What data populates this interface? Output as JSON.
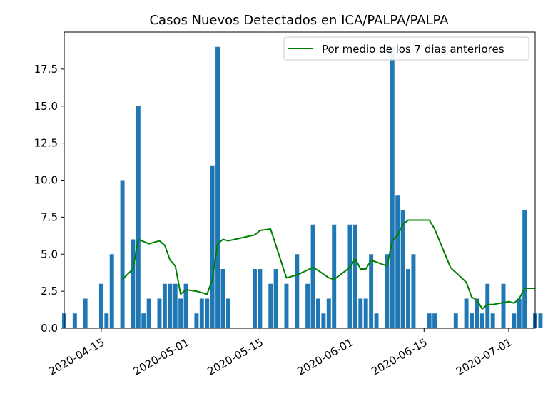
{
  "chart_data": {
    "type": "bar",
    "title": "Casos Nuevos Detectados en ICA/PALPA/PALPA",
    "xlabel": "",
    "ylabel": "",
    "ylim": [
      0,
      20
    ],
    "xlim": [
      "2020-04-08",
      "2020-07-06"
    ],
    "x_ticks": [
      "2020-04-15",
      "2020-05-01",
      "2020-05-15",
      "2020-06-01",
      "2020-06-15",
      "2020-07-01"
    ],
    "y_ticks": [
      "0.0",
      "2.5",
      "5.0",
      "7.5",
      "10.0",
      "12.5",
      "15.0",
      "17.5"
    ],
    "y_tick_values": [
      0,
      2.5,
      5,
      7.5,
      10,
      12.5,
      15,
      17.5
    ],
    "legend": {
      "location": "top-right",
      "entries": [
        "Por medio de los 7 dias anteriores"
      ]
    },
    "colors": {
      "bars": "#1f77b4",
      "line": "#008000"
    },
    "series": [
      {
        "type": "bar",
        "x": [
          "2020-04-08",
          "2020-04-10",
          "2020-04-12",
          "2020-04-15",
          "2020-04-16",
          "2020-04-17",
          "2020-04-19",
          "2020-04-21",
          "2020-04-22",
          "2020-04-23",
          "2020-04-24",
          "2020-04-26",
          "2020-04-27",
          "2020-04-28",
          "2020-04-29",
          "2020-04-30",
          "2020-05-01",
          "2020-05-03",
          "2020-05-04",
          "2020-05-05",
          "2020-05-06",
          "2020-05-07",
          "2020-05-08",
          "2020-05-09",
          "2020-05-14",
          "2020-05-15",
          "2020-05-17",
          "2020-05-18",
          "2020-05-20",
          "2020-05-22",
          "2020-05-24",
          "2020-05-25",
          "2020-05-26",
          "2020-05-27",
          "2020-05-28",
          "2020-05-29",
          "2020-05-30",
          "2020-06-01",
          "2020-06-02",
          "2020-06-03",
          "2020-06-04",
          "2020-06-05",
          "2020-06-06",
          "2020-06-08",
          "2020-06-09",
          "2020-06-10",
          "2020-06-11",
          "2020-06-12",
          "2020-06-13",
          "2020-06-16",
          "2020-06-17",
          "2020-06-21",
          "2020-06-23",
          "2020-06-24",
          "2020-06-25",
          "2020-06-26",
          "2020-06-27",
          "2020-06-28",
          "2020-06-30",
          "2020-07-02",
          "2020-07-03",
          "2020-07-04",
          "2020-07-06",
          "2020-07-07"
        ],
        "values": [
          1,
          1,
          2,
          3,
          1,
          5,
          10,
          6,
          15,
          1,
          2,
          2,
          3,
          3,
          3,
          2,
          3,
          1,
          2,
          2,
          11,
          19,
          4,
          2,
          4,
          4,
          3,
          4,
          3,
          5,
          3,
          7,
          2,
          1,
          2,
          7,
          0,
          7,
          7,
          2,
          2,
          5,
          1,
          5,
          19,
          9,
          8,
          4,
          5,
          1,
          1,
          1,
          2,
          1,
          2,
          1,
          3,
          1,
          3,
          1,
          2,
          8,
          1,
          1
        ]
      },
      {
        "type": "line",
        "name": "Por medio de los 7 dias anteriores",
        "x": [
          "2020-04-19",
          "2020-04-21",
          "2020-04-22",
          "2020-04-24",
          "2020-04-26",
          "2020-04-27",
          "2020-04-28",
          "2020-04-29",
          "2020-04-30",
          "2020-05-01",
          "2020-05-03",
          "2020-05-04",
          "2020-05-05",
          "2020-05-06",
          "2020-05-07",
          "2020-05-08",
          "2020-05-09",
          "2020-05-14",
          "2020-05-15",
          "2020-05-17",
          "2020-05-18",
          "2020-05-20",
          "2020-05-22",
          "2020-05-25",
          "2020-05-26",
          "2020-05-28",
          "2020-05-29",
          "2020-06-01",
          "2020-06-02",
          "2020-06-03",
          "2020-06-04",
          "2020-06-05",
          "2020-06-08",
          "2020-06-09",
          "2020-06-10",
          "2020-06-11",
          "2020-06-12",
          "2020-06-13",
          "2020-06-15",
          "2020-06-16",
          "2020-06-17",
          "2020-06-20",
          "2020-06-23",
          "2020-06-24",
          "2020-06-25",
          "2020-06-26",
          "2020-06-27",
          "2020-06-28",
          "2020-07-01",
          "2020-07-02",
          "2020-07-03",
          "2020-07-04",
          "2020-07-05",
          "2020-07-06"
        ],
        "values": [
          3.3,
          4.0,
          6.0,
          5.7,
          5.9,
          5.6,
          4.6,
          4.2,
          2.3,
          2.6,
          2.5,
          2.4,
          2.3,
          3.3,
          5.7,
          6.0,
          5.9,
          6.3,
          6.6,
          6.7,
          5.6,
          3.4,
          3.6,
          4.1,
          3.9,
          3.4,
          3.3,
          4.1,
          4.7,
          4.0,
          4.0,
          4.6,
          4.2,
          5.9,
          6.3,
          7.0,
          7.3,
          7.3,
          7.3,
          7.3,
          6.7,
          4.1,
          3.1,
          2.1,
          1.9,
          1.3,
          1.6,
          1.6,
          1.8,
          1.7,
          2.0,
          2.7,
          2.7,
          2.7
        ]
      }
    ]
  }
}
